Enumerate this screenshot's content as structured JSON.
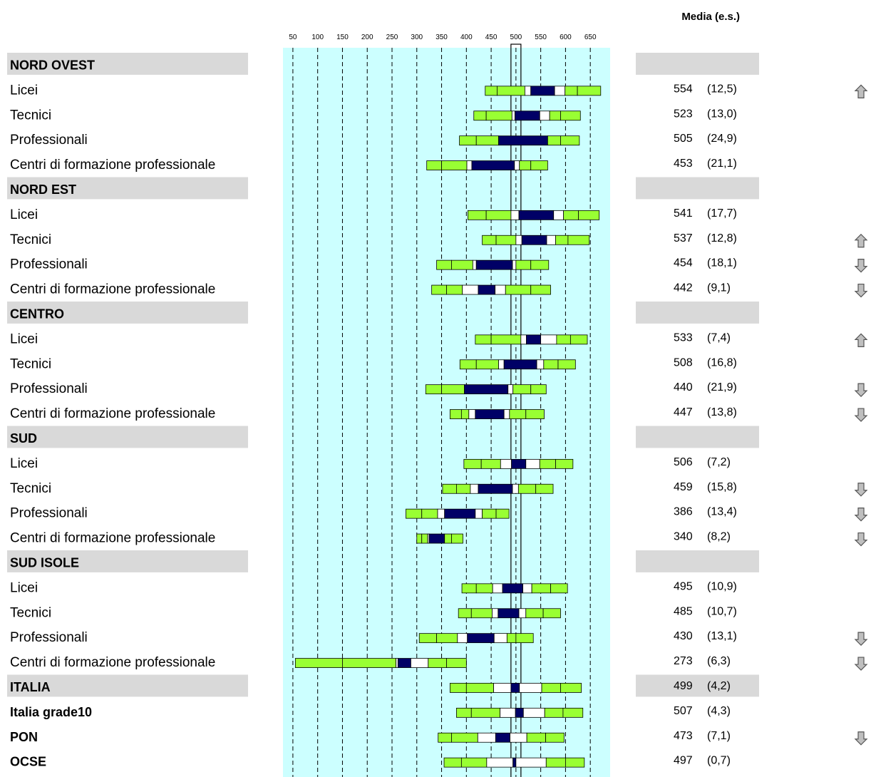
{
  "chart_data": {
    "type": "bar",
    "header": {
      "media_label": "Media (e.s.)"
    },
    "axis": {
      "ticks": [
        50,
        100,
        150,
        200,
        250,
        300,
        350,
        400,
        450,
        500,
        550,
        600,
        650
      ],
      "range": [
        30,
        690
      ],
      "reference_value": 500
    },
    "colors": {
      "background_band": "#ccffff",
      "header_row": "#d9d9d9",
      "outer_band": "#99ff33",
      "inner_band": "#ffffff",
      "confidence_interval": "#000066",
      "grid": "#000000",
      "arrow_fill": "#bfbfbf",
      "arrow_stroke": "#555555"
    },
    "rows": [
      {
        "type": "header",
        "label": "NORD OVEST"
      },
      {
        "type": "data",
        "label": "Licei",
        "mean": 554,
        "se": "12,5",
        "arrow": "up",
        "p5": 438,
        "p10": 462,
        "p25": 518,
        "ci_low": 530,
        "ci_high": 578,
        "p75": 599,
        "p90": 624,
        "p95": 671,
        "mean_text": "554",
        "se_text": "(12,5)"
      },
      {
        "type": "data",
        "label": "Tecnici",
        "mean": 523,
        "se": "13,0",
        "arrow": "",
        "p5": 415,
        "p10": 440,
        "p25": 492,
        "ci_low": 498,
        "ci_high": 548,
        "p75": 568,
        "p90": 590,
        "p95": 630,
        "mean_text": "523",
        "se_text": "(13,0)"
      },
      {
        "type": "data",
        "label": "Professionali",
        "mean": 505,
        "se": "24,9",
        "arrow": "",
        "p5": 386,
        "p10": 420,
        "p25": 465,
        "ci_low": 465,
        "ci_high": 564,
        "p75": 564,
        "p90": 590,
        "p95": 628,
        "mean_text": "505",
        "se_text": "(24,9)"
      },
      {
        "type": "data",
        "label": "Centri di formazione professionale",
        "mean": 453,
        "se": "21,1",
        "arrow": "",
        "p5": 320,
        "p10": 350,
        "p25": 401,
        "ci_low": 411,
        "ci_high": 497,
        "p75": 507,
        "p90": 530,
        "p95": 564,
        "mean_text": "453",
        "se_text": "(21,1)"
      },
      {
        "type": "header",
        "label": "NORD EST"
      },
      {
        "type": "data",
        "label": "Licei",
        "mean": 541,
        "se": "17,7",
        "arrow": "",
        "p5": 403,
        "p10": 440,
        "p25": 490,
        "ci_low": 506,
        "ci_high": 576,
        "p75": 596,
        "p90": 626,
        "p95": 668,
        "mean_text": "541",
        "se_text": "(17,7)"
      },
      {
        "type": "data",
        "label": "Tecnici",
        "mean": 537,
        "se": "12,8",
        "arrow": "up",
        "p5": 432,
        "p10": 460,
        "p25": 500,
        "ci_low": 512,
        "ci_high": 562,
        "p75": 580,
        "p90": 605,
        "p95": 648,
        "mean_text": "537",
        "se_text": "(12,8)"
      },
      {
        "type": "data",
        "label": "Professionali",
        "mean": 454,
        "se": "18,1",
        "arrow": "down",
        "p5": 340,
        "p10": 370,
        "p25": 413,
        "ci_low": 420,
        "ci_high": 493,
        "p75": 500,
        "p90": 530,
        "p95": 566,
        "mean_text": "454",
        "se_text": "(18,1)"
      },
      {
        "type": "data",
        "label": "Centri di formazione professionale",
        "mean": 442,
        "se": "9,1",
        "arrow": "down",
        "p5": 330,
        "p10": 360,
        "p25": 392,
        "ci_low": 424,
        "ci_high": 458,
        "p75": 479,
        "p90": 530,
        "p95": 570,
        "mean_text": "442",
        "se_text": "(9,1)"
      },
      {
        "type": "header",
        "label": "CENTRO"
      },
      {
        "type": "data",
        "label": "Licei",
        "mean": 533,
        "se": "7,4",
        "arrow": "up",
        "p5": 418,
        "p10": 450,
        "p25": 510,
        "ci_low": 521,
        "ci_high": 550,
        "p75": 582,
        "p90": 610,
        "p95": 644,
        "mean_text": "533",
        "se_text": "(7,4)"
      },
      {
        "type": "data",
        "label": "Tecnici",
        "mean": 508,
        "se": "16,8",
        "arrow": "",
        "p5": 387,
        "p10": 420,
        "p25": 465,
        "ci_low": 476,
        "ci_high": 542,
        "p75": 556,
        "p90": 585,
        "p95": 620,
        "mean_text": "508",
        "se_text": "(16,8)"
      },
      {
        "type": "data",
        "label": "Professionali",
        "mean": 440,
        "se": "21,9",
        "arrow": "down",
        "p5": 318,
        "p10": 350,
        "p25": 396,
        "ci_low": 396,
        "ci_high": 484,
        "p75": 494,
        "p90": 530,
        "p95": 561,
        "mean_text": "440",
        "se_text": "(21,9)"
      },
      {
        "type": "data",
        "label": "Centri di formazione professionale",
        "mean": 447,
        "se": "13,8",
        "arrow": "down",
        "p5": 367,
        "p10": 390,
        "p25": 405,
        "ci_low": 418,
        "ci_high": 476,
        "p75": 487,
        "p90": 520,
        "p95": 557,
        "mean_text": "447",
        "se_text": "(13,8)"
      },
      {
        "type": "header",
        "label": "SUD"
      },
      {
        "type": "data",
        "label": "Licei",
        "mean": 506,
        "se": "7,2",
        "arrow": "",
        "p5": 395,
        "p10": 430,
        "p25": 469,
        "ci_low": 491,
        "ci_high": 520,
        "p75": 548,
        "p90": 580,
        "p95": 615,
        "mean_text": "506",
        "se_text": "(7,2)"
      },
      {
        "type": "data",
        "label": "Tecnici",
        "mean": 459,
        "se": "15,8",
        "arrow": "down",
        "p5": 352,
        "p10": 380,
        "p25": 408,
        "ci_low": 424,
        "ci_high": 493,
        "p75": 505,
        "p90": 540,
        "p95": 575,
        "mean_text": "459",
        "se_text": "(15,8)"
      },
      {
        "type": "data",
        "label": "Professionali",
        "mean": 386,
        "se": "13,4",
        "arrow": "down",
        "p5": 278,
        "p10": 310,
        "p25": 342,
        "ci_low": 356,
        "ci_high": 418,
        "p75": 432,
        "p90": 460,
        "p95": 486,
        "mean_text": "386",
        "se_text": "(13,4)"
      },
      {
        "type": "data",
        "label": "Centri di formazione professionale",
        "mean": 340,
        "se": "8,2",
        "arrow": "down",
        "p5": 300,
        "p10": 310,
        "p25": 322,
        "ci_low": 325,
        "ci_high": 356,
        "p75": 356,
        "p90": 370,
        "p95": 393,
        "mean_text": "340",
        "se_text": "(8,2)"
      },
      {
        "type": "header",
        "label": "SUD ISOLE"
      },
      {
        "type": "data",
        "label": "Licei",
        "mean": 495,
        "se": "10,9",
        "arrow": "",
        "p5": 391,
        "p10": 420,
        "p25": 453,
        "ci_low": 473,
        "ci_high": 514,
        "p75": 532,
        "p90": 570,
        "p95": 604,
        "mean_text": "495",
        "se_text": "(10,9)"
      },
      {
        "type": "data",
        "label": "Tecnici",
        "mean": 485,
        "se": "10,7",
        "arrow": "",
        "p5": 384,
        "p10": 410,
        "p25": 452,
        "ci_low": 464,
        "ci_high": 506,
        "p75": 520,
        "p90": 555,
        "p95": 590,
        "mean_text": "485",
        "se_text": "(10,7)"
      },
      {
        "type": "data",
        "label": "Professionali",
        "mean": 430,
        "se": "13,1",
        "arrow": "down",
        "p5": 305,
        "p10": 340,
        "p25": 382,
        "ci_low": 402,
        "ci_high": 456,
        "p75": 482,
        "p90": 500,
        "p95": 535,
        "mean_text": "430",
        "se_text": "(13,1)"
      },
      {
        "type": "data",
        "label": "Centri di formazione professionale",
        "mean": 273,
        "se": "6,3",
        "arrow": "down",
        "p5": 55,
        "p10": 150,
        "p25": 258,
        "ci_low": 262,
        "ci_high": 288,
        "p75": 323,
        "p90": 360,
        "p95": 400,
        "mean_text": "273",
        "se_text": "(6,3)"
      },
      {
        "type": "header-total",
        "label": "ITALIA",
        "mean": 499,
        "se": "4,2",
        "arrow": "",
        "p5": 367,
        "p10": 400,
        "p25": 455,
        "ci_low": 490,
        "ci_high": 507,
        "p75": 552,
        "p90": 590,
        "p95": 632,
        "mean_text": "499",
        "se_text": "(4,2)"
      },
      {
        "type": "data-bold",
        "label": "Italia grade10",
        "mean": 507,
        "se": "4,3",
        "arrow": "",
        "p5": 380,
        "p10": 410,
        "p25": 468,
        "ci_low": 499,
        "ci_high": 515,
        "p75": 558,
        "p90": 595,
        "p95": 635,
        "mean_text": "507",
        "se_text": "(4,3)"
      },
      {
        "type": "data-bold",
        "label": "PON",
        "mean": 473,
        "se": "7,1",
        "arrow": "down",
        "p5": 343,
        "p10": 370,
        "p25": 423,
        "ci_low": 459,
        "ci_high": 488,
        "p75": 522,
        "p90": 560,
        "p95": 597,
        "mean_text": "473",
        "se_text": "(7,1)"
      },
      {
        "type": "data-bold",
        "label": "OCSE",
        "mean": 497,
        "se": "0,7",
        "arrow": "",
        "p5": 355,
        "p10": 390,
        "p25": 441,
        "ci_low": 494,
        "ci_high": 500,
        "p75": 561,
        "p90": 600,
        "p95": 638,
        "mean_text": "497",
        "se_text": "(0,7)"
      }
    ]
  }
}
